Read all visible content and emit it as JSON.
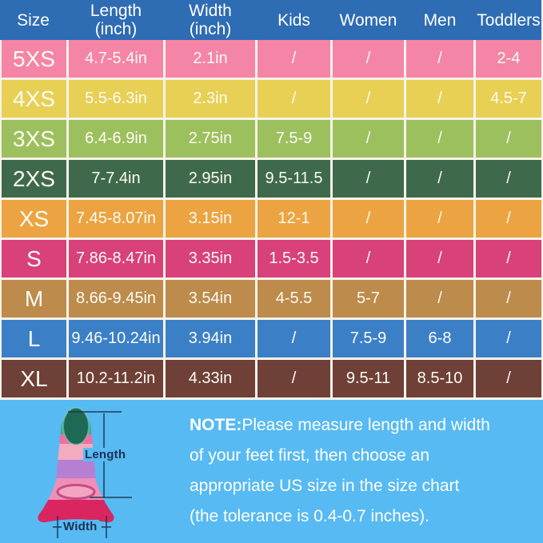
{
  "table": {
    "header_bg": "#2e6cb4",
    "separator_color": "#f8f3e9",
    "text_color": "#fdfbf4",
    "columns": [
      [
        "Size"
      ],
      [
        "Length",
        "(inch)"
      ],
      [
        "Width",
        "(inch)"
      ],
      [
        "Kids"
      ],
      [
        "Women"
      ],
      [
        "Men"
      ],
      [
        "Toddlers"
      ]
    ],
    "rows": [
      {
        "cells": [
          "5XS",
          "4.7-5.4in",
          "2.1in",
          "/",
          "/",
          "/",
          "2-4"
        ],
        "color": "#f585a6"
      },
      {
        "cells": [
          "4XS",
          "5.5-6.3in",
          "2.3in",
          "/",
          "/",
          "/",
          "4.5-7"
        ],
        "color": "#e8d055"
      },
      {
        "cells": [
          "3XS",
          "6.4-6.9in",
          "2.75in",
          "7.5-9",
          "/",
          "/",
          "/"
        ],
        "color": "#9dc05f"
      },
      {
        "cells": [
          "2XS",
          "7-7.4in",
          "2.95in",
          "9.5-11.5",
          "/",
          "/",
          "/"
        ],
        "color": "#3e6a4b"
      },
      {
        "cells": [
          "XS",
          "7.45-8.07in",
          "3.15in",
          "12-1",
          "/",
          "/",
          "/"
        ],
        "color": "#eca442"
      },
      {
        "cells": [
          "S",
          "7.86-8.47in",
          "3.35in",
          "1.5-3.5",
          "/",
          "/",
          "/"
        ],
        "color": "#d8417a"
      },
      {
        "cells": [
          "M",
          "8.66-9.45in",
          "3.54in",
          "4-5.5",
          "5-7",
          "/",
          "/"
        ],
        "color": "#bd8b4b"
      },
      {
        "cells": [
          "L",
          "9.46-10.24in",
          "3.94in",
          "/",
          "7.5-9",
          "6-8",
          "/"
        ],
        "color": "#3b80c6"
      },
      {
        "cells": [
          "XL",
          "10.2-11.2in",
          "4.33in",
          "/",
          "9.5-11",
          "8.5-10",
          "/"
        ],
        "color": "#6e4037"
      }
    ]
  },
  "chart_data": {
    "type": "table",
    "columns": [
      "Size",
      "Length (inch)",
      "Width (inch)",
      "Kids",
      "Women",
      "Men",
      "Toddlers"
    ],
    "rows": [
      [
        "5XS",
        "4.7-5.4in",
        "2.1in",
        "/",
        "/",
        "/",
        "2-4"
      ],
      [
        "4XS",
        "5.5-6.3in",
        "2.3in",
        "/",
        "/",
        "/",
        "4.5-7"
      ],
      [
        "3XS",
        "6.4-6.9in",
        "2.75in",
        "7.5-9",
        "/",
        "/",
        "/"
      ],
      [
        "2XS",
        "7-7.4in",
        "2.95in",
        "9.5-11.5",
        "/",
        "/",
        "/"
      ],
      [
        "XS",
        "7.45-8.07in",
        "3.15in",
        "12-1",
        "/",
        "/",
        "/"
      ],
      [
        "S",
        "7.86-8.47in",
        "3.35in",
        "1.5-3.5",
        "/",
        "/",
        "/"
      ],
      [
        "M",
        "8.66-9.45in",
        "3.54in",
        "4-5.5",
        "5-7",
        "/",
        "/"
      ],
      [
        "L",
        "9.46-10.24in",
        "3.94in",
        "/",
        "7.5-9",
        "6-8",
        "/"
      ],
      [
        "XL",
        "10.2-11.2in",
        "4.33in",
        "/",
        "9.5-11",
        "8.5-10",
        "/"
      ]
    ]
  },
  "note": {
    "label": "NOTE:",
    "lines": [
      "Please measure length and width",
      "of your feet first, then choose an",
      "appropriate US size in the size chart",
      "(the tolerance is 0.4-0.7 inches)."
    ]
  },
  "diagram": {
    "length_label": "Length",
    "width_label": "Width"
  },
  "colors": {
    "background_bottom": "#57baf2",
    "header_blue": "#2e6cb4",
    "annotation_line": "#1f3a57",
    "fin_tip_teal": "#3fae92",
    "fin_opening": "#1e6854",
    "fin_ring_pink": "#ef6fa0",
    "fin_salmon": "#f3abbe",
    "fin_purple": "#b77fd2",
    "fin_pink": "#ee8fb7",
    "fin_crimson": "#d92560"
  }
}
